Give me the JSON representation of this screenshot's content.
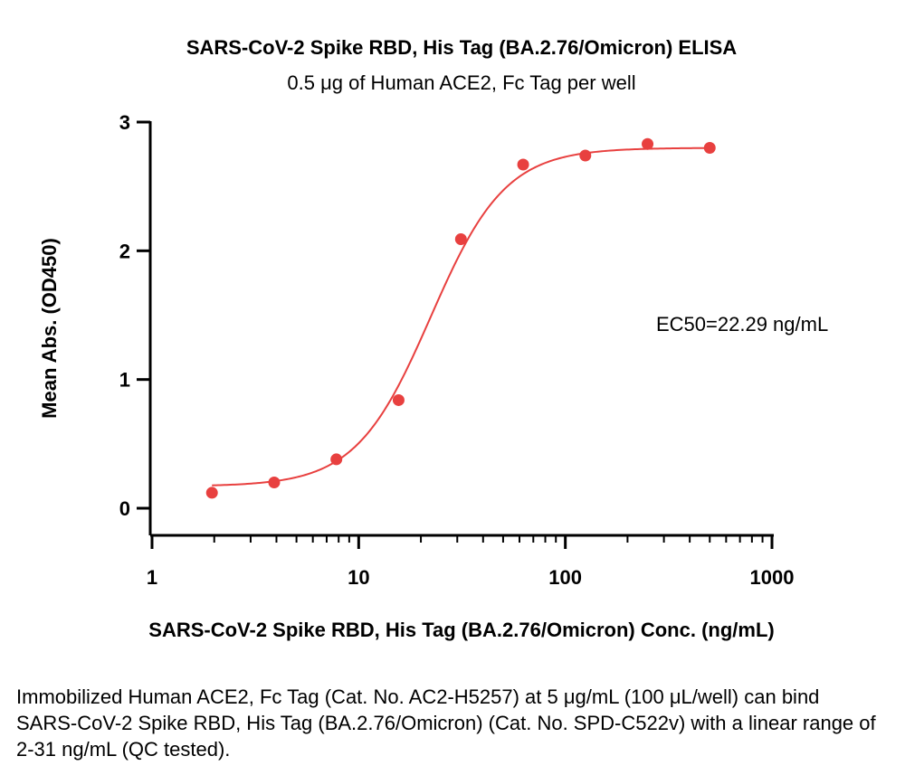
{
  "chart_data": {
    "type": "scatter",
    "title": "SARS-CoV-2 Spike RBD, His Tag (BA.2.76/Omicron) ELISA",
    "subtitle": "0.5 μg of Human ACE2, Fc Tag per well",
    "xlabel": "SARS-CoV-2 Spike RBD, His Tag (BA.2.76/Omicron) Conc. (ng/mL)",
    "ylabel": "Mean Abs. (OD450)",
    "xscale": "log",
    "xlim": [
      1,
      1000
    ],
    "ylim": [
      -0.2,
      3
    ],
    "xticks": [
      "1",
      "10",
      "100",
      "1000"
    ],
    "xtick_values": [
      1,
      10,
      100,
      1000
    ],
    "yticks": [
      "0",
      "1",
      "2",
      "3"
    ],
    "ytick_values": [
      0,
      1,
      2,
      3
    ],
    "grid": false,
    "annotation": "EC50=22.29 ng/mL",
    "series": [
      {
        "points": [
          {
            "x": 1.95,
            "y": 0.12
          },
          {
            "x": 3.9,
            "y": 0.2
          },
          {
            "x": 7.8,
            "y": 0.38
          },
          {
            "x": 15.6,
            "y": 0.84
          },
          {
            "x": 31.25,
            "y": 2.09
          },
          {
            "x": 62.5,
            "y": 2.67
          },
          {
            "x": 125,
            "y": 2.74
          },
          {
            "x": 250,
            "y": 2.83
          },
          {
            "x": 500,
            "y": 2.8
          }
        ],
        "fit": {
          "bottom": 0.17,
          "top": 2.8,
          "ec50": 22.29,
          "hill": 2.4
        },
        "color": "#e8403f"
      }
    ]
  },
  "caption": "Immobilized Human ACE2, Fc Tag (Cat. No. AC2-H5257) at 5 μg/mL (100 μL/well) can bind SARS-CoV-2 Spike RBD, His Tag (BA.2.76/Omicron) (Cat. No. SPD-C522v) with a linear range of 2-31 ng/mL (QC tested)."
}
